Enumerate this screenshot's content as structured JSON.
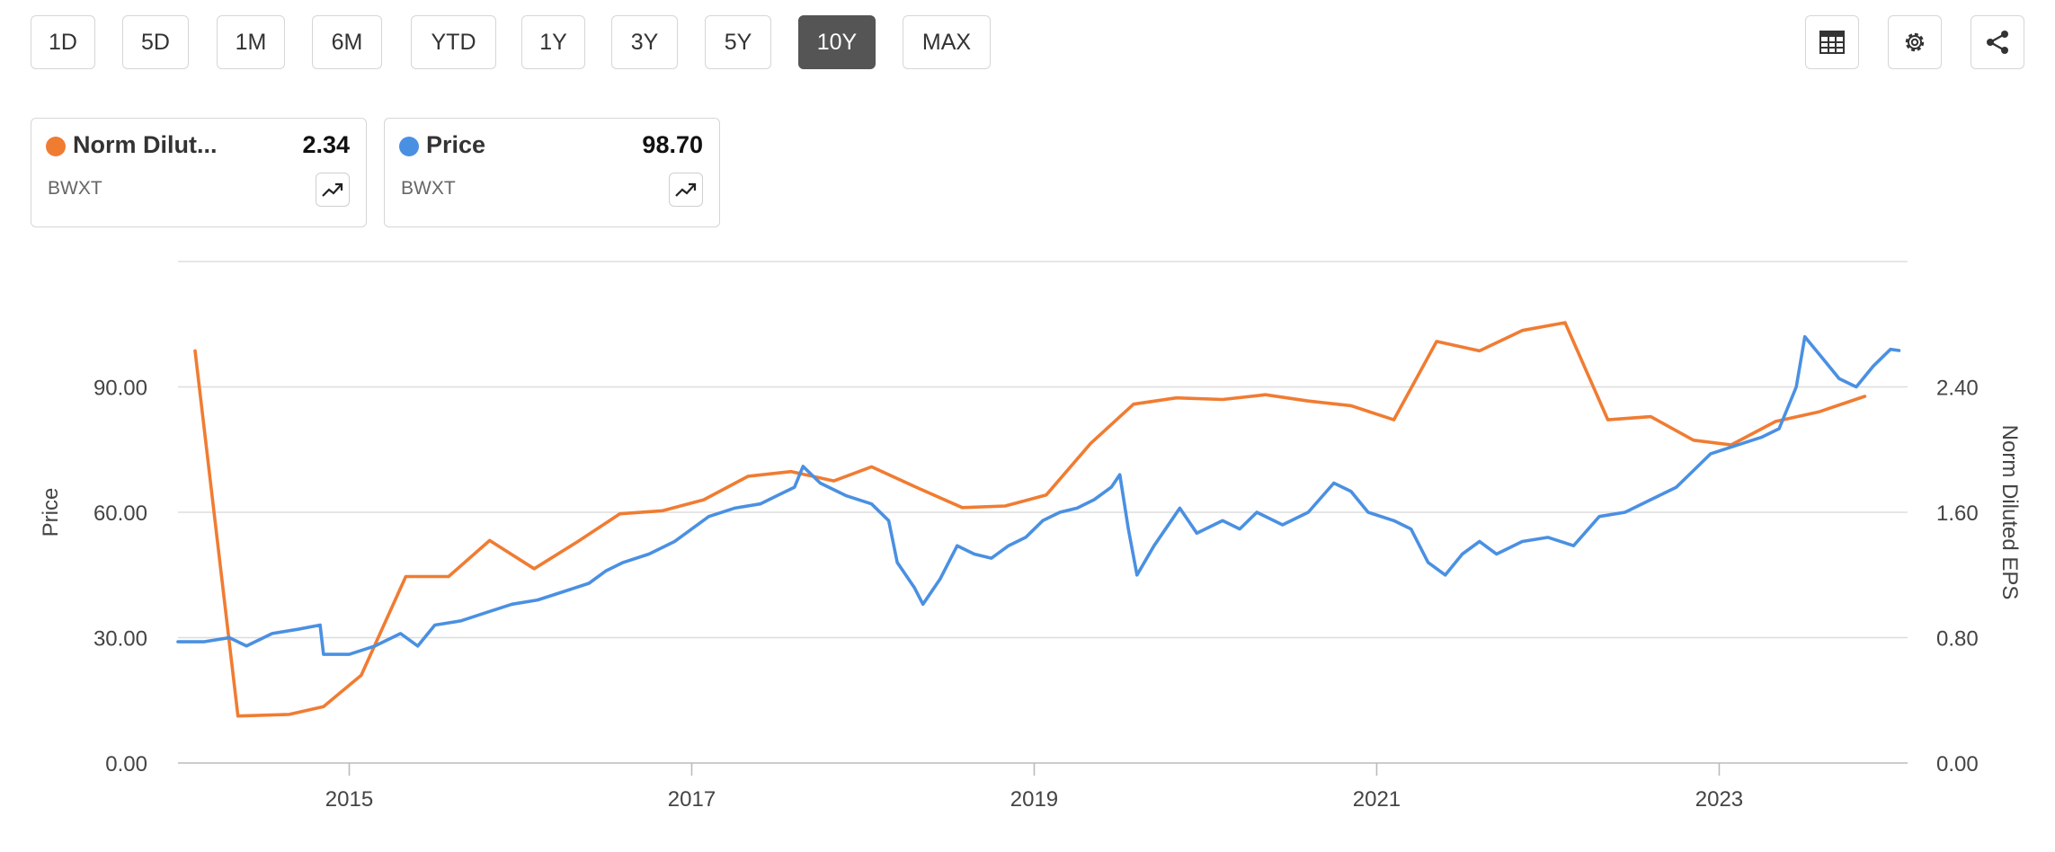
{
  "toolbar": {
    "ranges": [
      "1D",
      "5D",
      "1M",
      "6M",
      "YTD",
      "1Y",
      "3Y",
      "5Y",
      "10Y",
      "MAX"
    ],
    "active_range": "10Y",
    "tools": [
      "table-icon",
      "gear-icon",
      "share-icon"
    ]
  },
  "legend_cards": [
    {
      "name": "Norm Dilut...",
      "value": "2.34",
      "ticker": "BWXT",
      "color": "#f07c32",
      "icon": "trend-up-icon"
    },
    {
      "name": "Price",
      "value": "98.70",
      "ticker": "BWXT",
      "color": "#4a90e2",
      "icon": "trend-up-icon"
    }
  ],
  "chart_data": {
    "type": "line",
    "title": "",
    "x_ticks": [
      "2015",
      "2017",
      "2019",
      "2021",
      "2023"
    ],
    "left_axis": {
      "label": "Price",
      "ticks": [
        "0.00",
        "30.00",
        "60.00",
        "90.00"
      ],
      "range": [
        0,
        120
      ]
    },
    "right_axis": {
      "label": "Norm Diluted EPS",
      "ticks": [
        "0.00",
        "0.80",
        "1.60",
        "2.40"
      ],
      "range": [
        0,
        3.2
      ]
    },
    "x_range": [
      2014.0,
      2024.1
    ],
    "grid": true,
    "series": [
      {
        "name": "Norm Diluted EPS",
        "axis": "right",
        "color": "#f07c32",
        "points": [
          [
            2014.1,
            2.63
          ],
          [
            2014.35,
            0.3
          ],
          [
            2014.65,
            0.31
          ],
          [
            2014.85,
            0.36
          ],
          [
            2015.07,
            0.56
          ],
          [
            2015.33,
            1.19
          ],
          [
            2015.58,
            1.19
          ],
          [
            2015.82,
            1.42
          ],
          [
            2016.08,
            1.24
          ],
          [
            2016.33,
            1.41
          ],
          [
            2016.58,
            1.59
          ],
          [
            2016.83,
            1.61
          ],
          [
            2017.07,
            1.68
          ],
          [
            2017.33,
            1.83
          ],
          [
            2017.58,
            1.86
          ],
          [
            2017.83,
            1.8
          ],
          [
            2018.05,
            1.89
          ],
          [
            2018.33,
            1.75
          ],
          [
            2018.58,
            1.63
          ],
          [
            2018.83,
            1.64
          ],
          [
            2019.07,
            1.71
          ],
          [
            2019.33,
            2.04
          ],
          [
            2019.58,
            2.29
          ],
          [
            2019.83,
            2.33
          ],
          [
            2020.1,
            2.32
          ],
          [
            2020.35,
            2.35
          ],
          [
            2020.6,
            2.31
          ],
          [
            2020.85,
            2.28
          ],
          [
            2021.1,
            2.19
          ],
          [
            2021.35,
            2.69
          ],
          [
            2021.6,
            2.63
          ],
          [
            2021.85,
            2.76
          ],
          [
            2022.1,
            2.81
          ],
          [
            2022.35,
            2.19
          ],
          [
            2022.6,
            2.21
          ],
          [
            2022.85,
            2.06
          ],
          [
            2023.07,
            2.03
          ],
          [
            2023.33,
            2.18
          ],
          [
            2023.58,
            2.24
          ],
          [
            2023.85,
            2.34
          ]
        ]
      },
      {
        "name": "Price",
        "axis": "left",
        "color": "#4a90e2",
        "points": [
          [
            2014.0,
            29
          ],
          [
            2014.15,
            29
          ],
          [
            2014.3,
            30
          ],
          [
            2014.4,
            28
          ],
          [
            2014.55,
            31
          ],
          [
            2014.7,
            32
          ],
          [
            2014.83,
            33
          ],
          [
            2014.85,
            26
          ],
          [
            2015.0,
            26
          ],
          [
            2015.15,
            28
          ],
          [
            2015.3,
            31
          ],
          [
            2015.4,
            28
          ],
          [
            2015.5,
            33
          ],
          [
            2015.65,
            34
          ],
          [
            2015.8,
            36
          ],
          [
            2015.95,
            38
          ],
          [
            2016.1,
            39
          ],
          [
            2016.25,
            41
          ],
          [
            2016.4,
            43
          ],
          [
            2016.5,
            46
          ],
          [
            2016.6,
            48
          ],
          [
            2016.75,
            50
          ],
          [
            2016.9,
            53
          ],
          [
            2017.0,
            56
          ],
          [
            2017.1,
            59
          ],
          [
            2017.25,
            61
          ],
          [
            2017.4,
            62
          ],
          [
            2017.5,
            64
          ],
          [
            2017.6,
            66
          ],
          [
            2017.65,
            71
          ],
          [
            2017.75,
            67
          ],
          [
            2017.9,
            64
          ],
          [
            2018.05,
            62
          ],
          [
            2018.15,
            58
          ],
          [
            2018.2,
            48
          ],
          [
            2018.3,
            42
          ],
          [
            2018.35,
            38
          ],
          [
            2018.45,
            44
          ],
          [
            2018.55,
            52
          ],
          [
            2018.65,
            50
          ],
          [
            2018.75,
            49
          ],
          [
            2018.85,
            52
          ],
          [
            2018.95,
            54
          ],
          [
            2019.05,
            58
          ],
          [
            2019.15,
            60
          ],
          [
            2019.25,
            61
          ],
          [
            2019.35,
            63
          ],
          [
            2019.45,
            66
          ],
          [
            2019.5,
            69
          ],
          [
            2019.55,
            56
          ],
          [
            2019.6,
            45
          ],
          [
            2019.7,
            52
          ],
          [
            2019.8,
            58
          ],
          [
            2019.85,
            61
          ],
          [
            2019.95,
            55
          ],
          [
            2020.1,
            58
          ],
          [
            2020.2,
            56
          ],
          [
            2020.3,
            60
          ],
          [
            2020.45,
            57
          ],
          [
            2020.6,
            60
          ],
          [
            2020.75,
            67
          ],
          [
            2020.85,
            65
          ],
          [
            2020.95,
            60
          ],
          [
            2021.1,
            58
          ],
          [
            2021.2,
            56
          ],
          [
            2021.3,
            48
          ],
          [
            2021.4,
            45
          ],
          [
            2021.5,
            50
          ],
          [
            2021.6,
            53
          ],
          [
            2021.7,
            50
          ],
          [
            2021.85,
            53
          ],
          [
            2022.0,
            54
          ],
          [
            2022.15,
            52
          ],
          [
            2022.3,
            59
          ],
          [
            2022.45,
            60
          ],
          [
            2022.6,
            63
          ],
          [
            2022.75,
            66
          ],
          [
            2022.85,
            70
          ],
          [
            2022.95,
            74
          ],
          [
            2023.1,
            76
          ],
          [
            2023.25,
            78
          ],
          [
            2023.35,
            80
          ],
          [
            2023.45,
            90
          ],
          [
            2023.5,
            102
          ],
          [
            2023.6,
            97
          ],
          [
            2023.7,
            92
          ],
          [
            2023.8,
            90
          ],
          [
            2023.9,
            95
          ],
          [
            2024.0,
            99
          ],
          [
            2024.05,
            98.7
          ]
        ]
      }
    ]
  }
}
